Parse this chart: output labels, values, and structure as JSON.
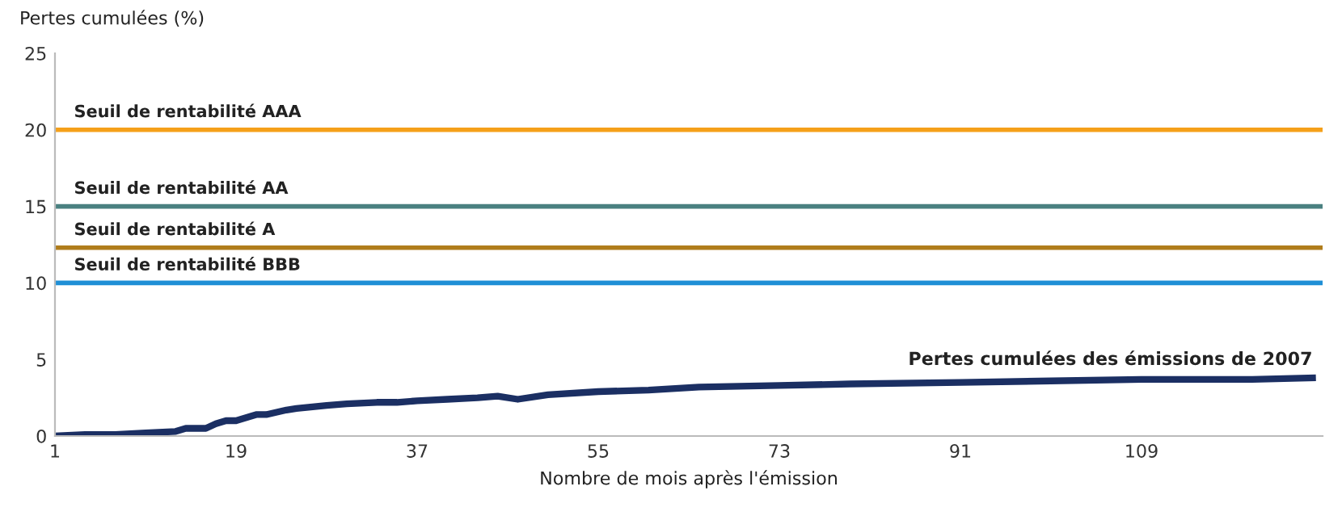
{
  "chart_data": {
    "type": "line",
    "ylabel": "Pertes cumulées (%)",
    "xlabel": "Nombre de mois après l'émission",
    "x": [
      1,
      4,
      7,
      10,
      13,
      14,
      16,
      17,
      18,
      19,
      21,
      22,
      24,
      25,
      28,
      30,
      33,
      35,
      37,
      40,
      43,
      45,
      47,
      50,
      55,
      60,
      65,
      73,
      80,
      91,
      100,
      109,
      120,
      126
    ],
    "series": [
      {
        "name": "Pertes cumulées des émissions de 2007",
        "color": "#1b2f63",
        "values": [
          0,
          0.1,
          0.1,
          0.2,
          0.3,
          0.5,
          0.5,
          0.8,
          1.0,
          1.0,
          1.4,
          1.4,
          1.7,
          1.8,
          2.0,
          2.1,
          2.2,
          2.2,
          2.3,
          2.4,
          2.5,
          2.6,
          2.4,
          2.7,
          2.9,
          3.0,
          3.2,
          3.3,
          3.4,
          3.5,
          3.6,
          3.7,
          3.7,
          3.8
        ]
      }
    ],
    "ref_lines": [
      {
        "axis": "y",
        "value": 20,
        "label": "Seuil de rentabilité AAA",
        "color": "#f5a01a"
      },
      {
        "axis": "y",
        "value": 15,
        "label": "Seuil de rentabilité AA",
        "color": "#4a8080"
      },
      {
        "axis": "y",
        "value": 12.3,
        "label": "Seuil de rentabilité A",
        "color": "#b07d1c"
      },
      {
        "axis": "y",
        "value": 10,
        "label": "Seuil de rentabilité BBB",
        "color": "#1f8fd6"
      }
    ],
    "xlim": [
      1,
      127
    ],
    "xticks": [
      1,
      19,
      37,
      55,
      73,
      91,
      109
    ],
    "ylim": [
      0,
      25
    ],
    "yticks": [
      0,
      5,
      10,
      15,
      20,
      25
    ],
    "grid": false,
    "legend": false,
    "marker": "none",
    "line_style": "solid"
  }
}
